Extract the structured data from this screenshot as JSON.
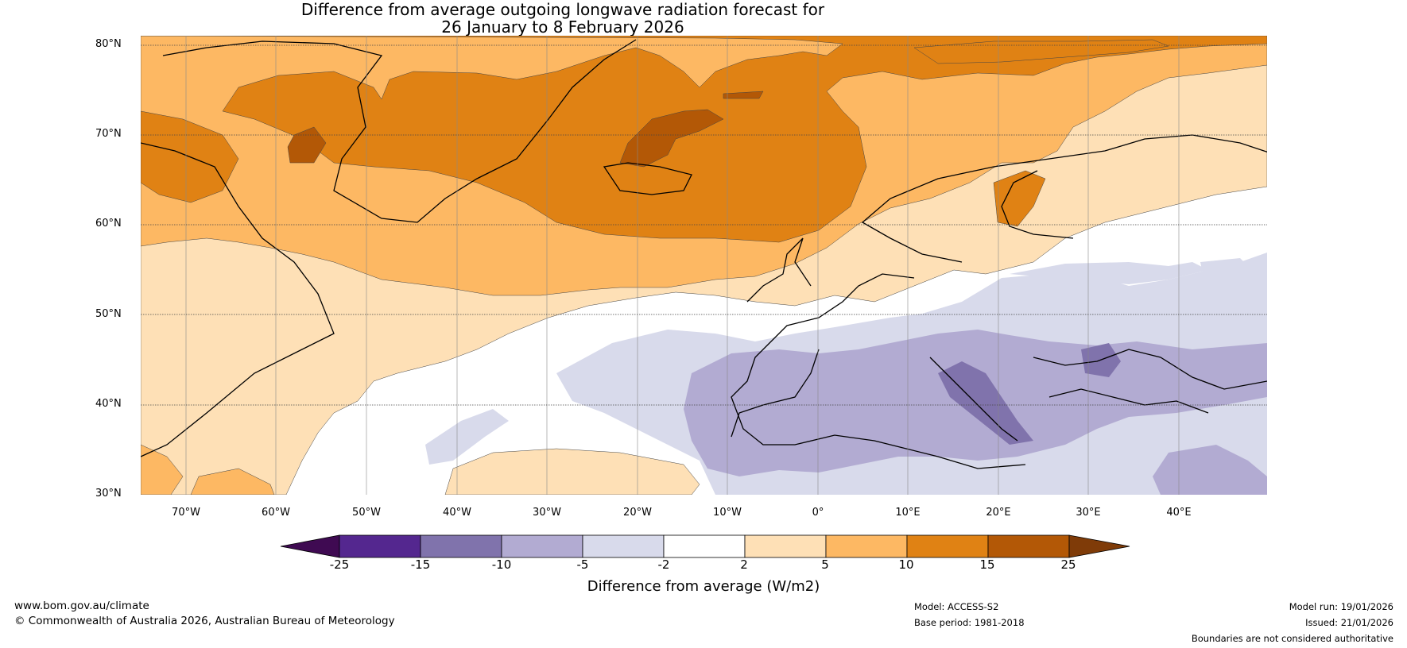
{
  "title_line1": "Difference from average outgoing longwave radiation forecast for",
  "title_line2": "26 January to 8 February 2026",
  "lat_labels": [
    "80°N",
    "70°N",
    "60°N",
    "50°N",
    "40°N",
    "30°N"
  ],
  "lon_labels": [
    "70°W",
    "60°W",
    "50°W",
    "40°W",
    "30°W",
    "20°W",
    "10°W",
    "0°",
    "10°E",
    "20°E",
    "30°E",
    "40°E"
  ],
  "colorbar": {
    "ticks": [
      "-25",
      "-15",
      "-10",
      "-5",
      "-2",
      "2",
      "5",
      "10",
      "15",
      "25"
    ],
    "colors": [
      "#3f0a52",
      "#54278f",
      "#8073ac",
      "#b2abd2",
      "#d8daeb",
      "#ffffff",
      "#fee0b6",
      "#fdb863",
      "#e08214",
      "#b35806",
      "#7f3b08"
    ],
    "label": "Difference from average (W/m2)"
  },
  "footer": {
    "website": "www.bom.gov.au/climate",
    "copyright": "© Commonwealth of Australia 2026, Australian Bureau of Meteorology",
    "model": "Model: ACCESS-S2",
    "base_period": "Base period: 1981-2018",
    "model_run": "Model run: 19/01/2026",
    "issued": "Issued: 21/01/2026",
    "disclaimer": "Boundaries are not considered authoritative"
  }
}
